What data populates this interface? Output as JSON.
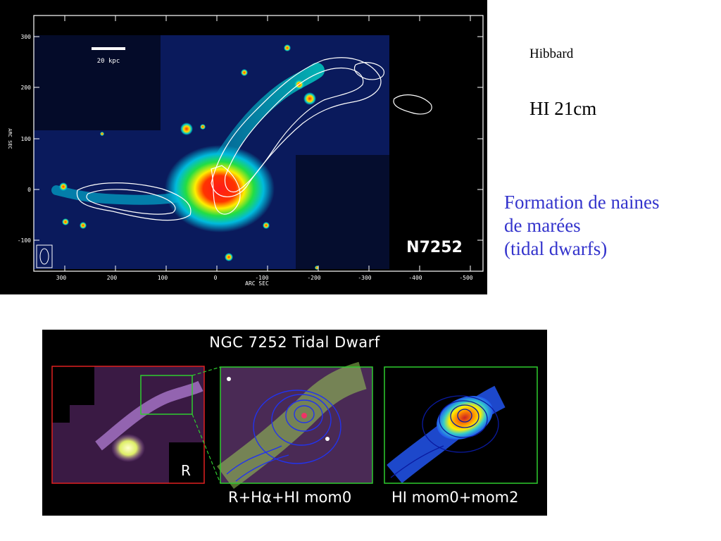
{
  "top_figure": {
    "scale_bar_label": "20 kpc",
    "x_axis_label": "ARC SEC",
    "y_axis_label": "ARC SEC",
    "x_ticks": [
      "300",
      "200",
      "100",
      "0",
      "-100",
      "-200",
      "-300",
      "-400",
      "-500"
    ],
    "y_ticks": [
      "300",
      "200",
      "100",
      "0",
      "-100"
    ],
    "object_name": "N7252"
  },
  "right_text": {
    "author": "Hibbard",
    "hi_label": "HI 21cm",
    "caption_lines": [
      "Formation de naines",
      "de marées",
      "(tidal dwarfs)"
    ],
    "caption_color": "#3333cc"
  },
  "bottom_figure": {
    "title": "NGC 7252 Tidal Dwarf",
    "panel_left_label": "R",
    "panel_middle_label": "R+Hα+HI mom0",
    "panel_right_label": "HI mom0+mom2",
    "panel_left_frame_color": "#e02020",
    "panel_frame_color": "#2ecc2e"
  }
}
